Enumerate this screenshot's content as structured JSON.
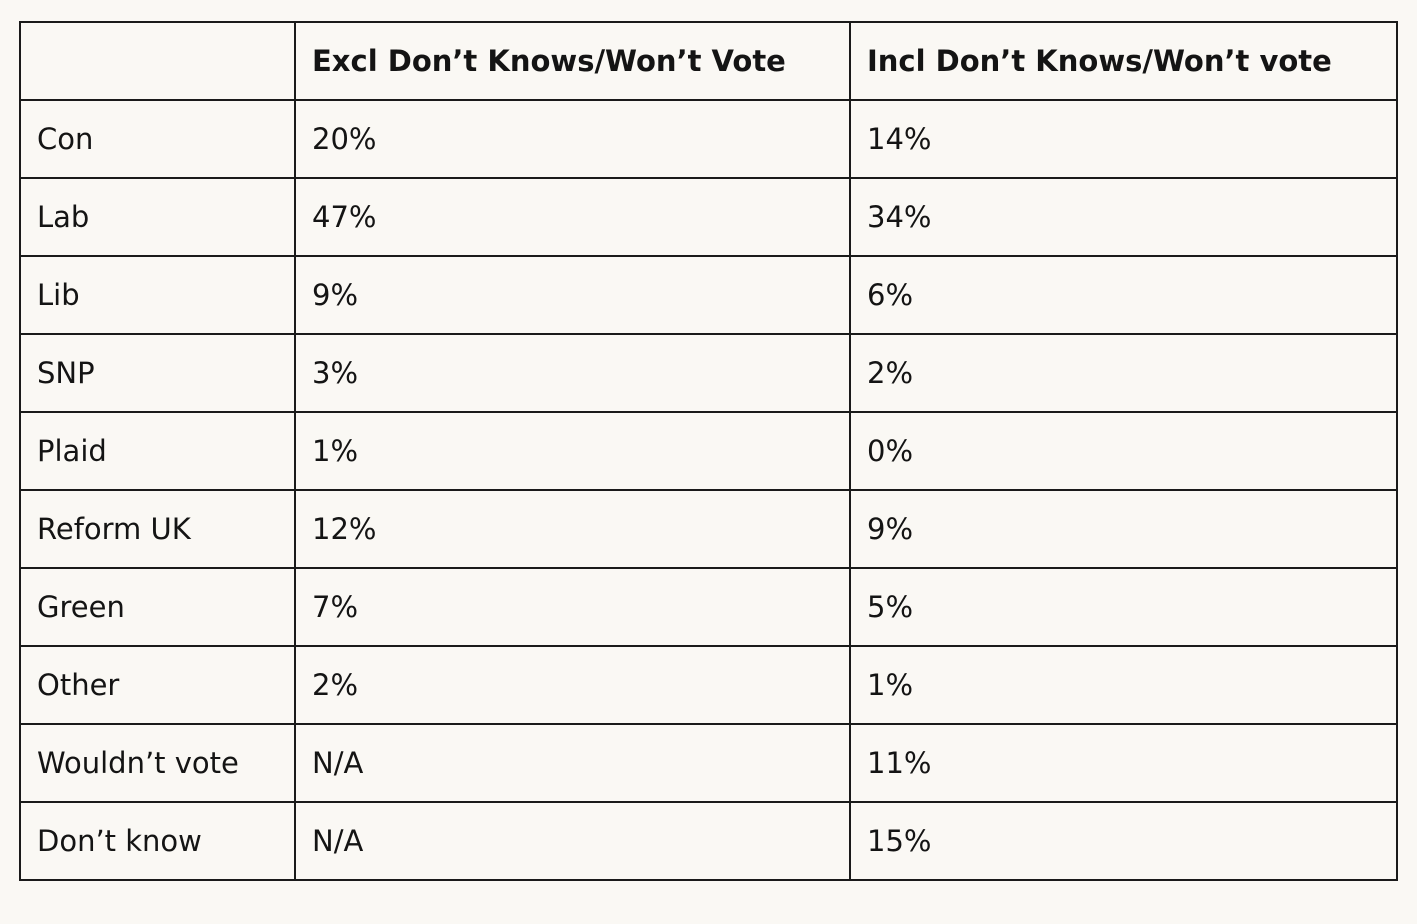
{
  "table": {
    "headers": [
      "",
      "Excl Don’t Knows/Won’t Vote",
      "Incl Don’t Knows/Won’t vote"
    ],
    "rows": [
      {
        "party": "Con",
        "excl": "20%",
        "incl": "14%"
      },
      {
        "party": "Lab",
        "excl": "47%",
        "incl": "34%"
      },
      {
        "party": "Lib",
        "excl": "9%",
        "incl": "6%"
      },
      {
        "party": "SNP",
        "excl": "3%",
        "incl": "2%"
      },
      {
        "party": "Plaid",
        "excl": "1%",
        "incl": "0%"
      },
      {
        "party": "Reform UK",
        "excl": "12%",
        "incl": "9%"
      },
      {
        "party": "Green",
        "excl": "7%",
        "incl": "5%"
      },
      {
        "party": "Other",
        "excl": "2%",
        "incl": "1%"
      },
      {
        "party": "Wouldn’t vote",
        "excl": "N/A",
        "incl": "11%"
      },
      {
        "party": "Don’t know",
        "excl": "N/A",
        "incl": "15%"
      }
    ]
  },
  "colors": {
    "background": "#faf8f4",
    "border": "#1a1a1a",
    "text": "#141414"
  }
}
